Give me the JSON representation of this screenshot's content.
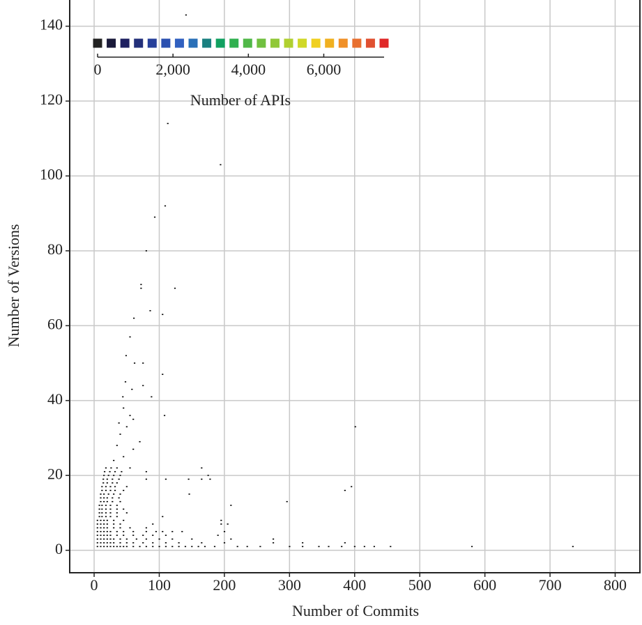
{
  "chart_data": {
    "type": "scatter",
    "x_label": "Number of Commits",
    "y_label": "Number of Versions",
    "xlim": [
      -37.5,
      838
    ],
    "ylim": [
      -6,
      147
    ],
    "xticks": [
      0,
      100,
      200,
      300,
      400,
      500,
      600,
      700,
      800
    ],
    "yticks": [
      0,
      20,
      40,
      60,
      80,
      100,
      120,
      140
    ],
    "grid": true,
    "series": [
      {
        "color": "#000000",
        "x": [
          5,
          10,
          15,
          20,
          25,
          30,
          35,
          40,
          45,
          50,
          60,
          70,
          80,
          90,
          100,
          110,
          120,
          130,
          140,
          150,
          160,
          170,
          185,
          220,
          235,
          255,
          300,
          320,
          345,
          360,
          380,
          400,
          415,
          430,
          455,
          580,
          735,
          5,
          10,
          15,
          20,
          25,
          30,
          40,
          50,
          60,
          75,
          90,
          110,
          130,
          165,
          200,
          275,
          320,
          385,
          5,
          10,
          15,
          20,
          25,
          30,
          40,
          50,
          65,
          80,
          100,
          120,
          150,
          210,
          275,
          5,
          10,
          15,
          20,
          25,
          35,
          45,
          60,
          75,
          90,
          110,
          190,
          5,
          10,
          15,
          20,
          25,
          35,
          45,
          60,
          80,
          95,
          105,
          120,
          135,
          200,
          5,
          10,
          15,
          20,
          30,
          40,
          55,
          80,
          5,
          10,
          15,
          20,
          30,
          40,
          90,
          195,
          205,
          5,
          10,
          15,
          20,
          30,
          45,
          195,
          8,
          12,
          18,
          25,
          35,
          105,
          8,
          12,
          18,
          25,
          35,
          50,
          8,
          12,
          18,
          25,
          35,
          45,
          8,
          12,
          18,
          25,
          35,
          210,
          10,
          15,
          20,
          28,
          40,
          296,
          10,
          15,
          20,
          28,
          38,
          10,
          15,
          22,
          30,
          40,
          146,
          12,
          18,
          25,
          32,
          45,
          385,
          12,
          18,
          25,
          32,
          50,
          395,
          14,
          20,
          28,
          35,
          14,
          20,
          28,
          38,
          80,
          110,
          145,
          165,
          178,
          15,
          22,
          30,
          40,
          175,
          16,
          24,
          32,
          42,
          80,
          18,
          26,
          35,
          55,
          165,
          30,
          45,
          60,
          35,
          70,
          40,
          50,
          38,
          60,
          55,
          45,
          75,
          58,
          48,
          141,
          113,
          194,
          109,
          93,
          80,
          124,
          72,
          72,
          86,
          105,
          61,
          55,
          105,
          49,
          62,
          75,
          88,
          108,
          401,
          44
        ],
        "values": [
          1,
          1,
          1,
          1,
          1,
          1,
          1,
          1,
          1,
          1,
          1,
          1,
          1,
          1,
          1,
          1,
          1,
          1,
          1,
          1,
          1,
          1,
          1,
          1,
          1,
          1,
          1,
          1,
          1,
          1,
          1,
          1,
          1,
          1,
          1,
          1,
          1,
          2,
          2,
          2,
          2,
          2,
          2,
          2,
          2,
          2,
          2,
          2,
          2,
          2,
          2,
          2,
          2,
          2,
          2,
          3,
          3,
          3,
          3,
          3,
          3,
          3,
          3,
          3,
          3,
          3,
          3,
          3,
          3,
          3,
          4,
          4,
          4,
          4,
          4,
          4,
          4,
          4,
          4,
          4,
          4,
          4,
          5,
          5,
          5,
          5,
          5,
          5,
          5,
          5,
          5,
          5,
          5,
          5,
          5,
          5,
          6,
          6,
          6,
          6,
          6,
          6,
          6,
          6,
          7,
          7,
          7,
          7,
          7,
          7,
          7,
          7,
          7,
          8,
          8,
          8,
          8,
          8,
          8,
          8,
          9,
          9,
          9,
          9,
          9,
          9,
          10,
          10,
          10,
          10,
          10,
          10,
          11,
          11,
          11,
          11,
          11,
          11,
          12,
          12,
          12,
          12,
          12,
          12,
          13,
          13,
          13,
          13,
          13,
          13,
          14,
          14,
          14,
          14,
          14,
          15,
          15,
          15,
          15,
          15,
          15,
          16,
          16,
          16,
          16,
          16,
          16,
          17,
          17,
          17,
          17,
          17,
          17,
          18,
          18,
          18,
          18,
          19,
          19,
          19,
          19,
          19,
          19,
          19,
          19,
          19,
          20,
          20,
          20,
          20,
          20,
          21,
          21,
          21,
          21,
          21,
          22,
          22,
          22,
          22,
          22,
          24,
          25,
          27,
          28,
          29,
          31,
          33,
          34,
          35,
          36,
          38,
          44,
          43,
          45,
          143,
          114,
          103,
          92,
          89,
          80,
          70,
          71,
          70,
          64,
          63,
          62,
          57,
          47,
          52,
          50,
          50,
          41,
          36,
          33,
          41
        ]
      }
    ],
    "colorbar": {
      "title": "Number of APIs",
      "lim": [
        0,
        7600
      ],
      "ticks": [
        0,
        {
          "value": 2000,
          "label": "2,000"
        },
        {
          "value": 4000,
          "label": "4,000"
        },
        {
          "value": 6000,
          "label": "6,000"
        }
      ],
      "colors": [
        "#222222",
        "#1a1a3a",
        "#1e2060",
        "#23307a",
        "#27409a",
        "#2b50b0",
        "#3060c0",
        "#2a70b8",
        "#1a8080",
        "#10a060",
        "#30b050",
        "#50b848",
        "#70c040",
        "#90c838",
        "#b0d030",
        "#d0d828",
        "#f0d020",
        "#f0b020",
        "#f09028",
        "#e87030",
        "#e05030",
        "#e02828"
      ]
    }
  }
}
